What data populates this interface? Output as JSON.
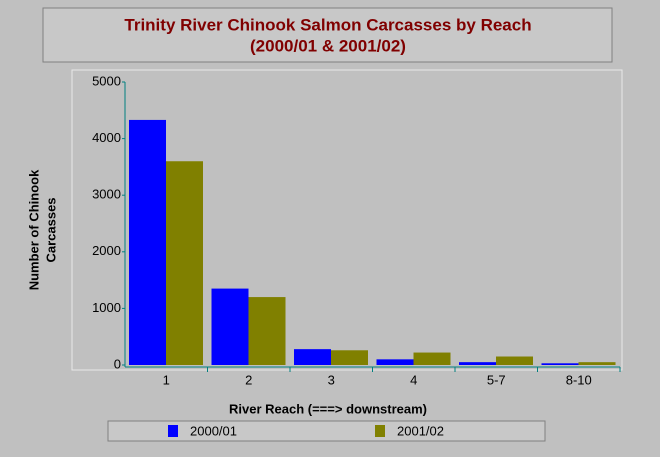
{
  "chart_data": {
    "type": "bar",
    "title": "Trinity River Chinook Salmon Carcasses by Reach",
    "subtitle": "(2000/01 & 2001/02)",
    "x_label": "River Reach (===>  downstream)",
    "y_label": [
      "Number of Chinook",
      "Carcasses"
    ],
    "categories": [
      "1",
      "2",
      "3",
      "4",
      "5-7",
      "8-10"
    ],
    "series": [
      {
        "name": "2000/01",
        "color": "#0000ff",
        "values": [
          4330,
          1350,
          280,
          100,
          50,
          30
        ]
      },
      {
        "name": "2001/02",
        "color": "#808000",
        "values": [
          3600,
          1200,
          260,
          220,
          150,
          50
        ]
      }
    ],
    "ylim": [
      0,
      5000
    ],
    "yticks": [
      0,
      1000,
      2000,
      3000,
      4000,
      5000
    ],
    "grid": false
  }
}
